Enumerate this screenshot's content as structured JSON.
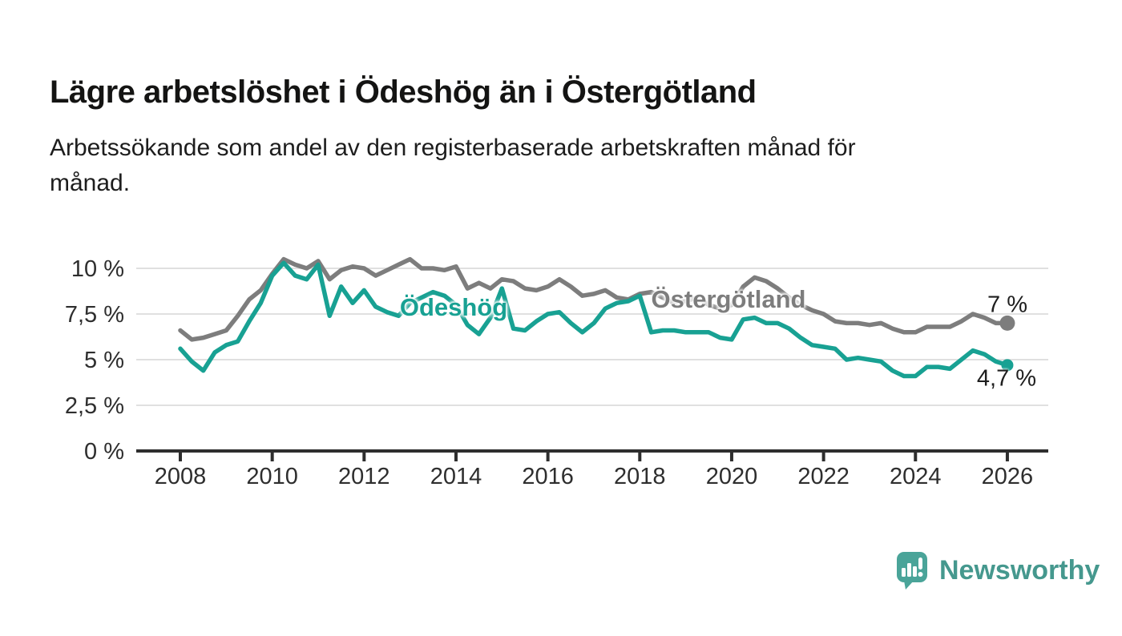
{
  "header": {
    "title": "Lägre arbetslöshet i Ödeshög än i Östergötland",
    "subtitle_lines": [
      "Arbetssökande som andel av den registerbaserade arbetskraften månad för",
      "månad."
    ]
  },
  "colors": {
    "odeshog": "#18a193",
    "ostergotland": "#7d7d7d",
    "axis": "#2e2e2e",
    "gridline": "#e0e0e0",
    "tick_text": "#2e2e2e",
    "text_dark": "#1e1e1e",
    "brand_bubble": "#4aa499",
    "brand_text": "#45988e"
  },
  "chart_data": {
    "type": "line",
    "title": "",
    "xlabel": "",
    "ylabel": "",
    "unit": "%",
    "grid": "horizontal",
    "legend_position": "inline-labels",
    "x_start": 2008,
    "x_step": 0.25,
    "x_end": 2026,
    "x_tick_years": [
      2008,
      2010,
      2012,
      2014,
      2016,
      2018,
      2020,
      2022,
      2024,
      2026
    ],
    "y_ticks": [
      {
        "value": 0,
        "label": "0 %"
      },
      {
        "value": 2.5,
        "label": "2,5 %"
      },
      {
        "value": 5,
        "label": "5 %"
      },
      {
        "value": 7.5,
        "label": "7,5 %"
      },
      {
        "value": 10,
        "label": "10 %"
      }
    ],
    "ylim": [
      0,
      11.5
    ],
    "series": [
      {
        "name": "Östergötland",
        "color": "#7d7d7d",
        "end_value_label": "7 %",
        "end_value": 7.0,
        "values": [
          6.6,
          6.1,
          6.2,
          6.4,
          6.6,
          7.4,
          8.3,
          8.8,
          9.7,
          10.5,
          10.2,
          10.0,
          10.4,
          9.4,
          9.9,
          10.1,
          10.0,
          9.6,
          9.9,
          10.2,
          10.5,
          10.0,
          10.0,
          9.9,
          10.1,
          8.9,
          9.2,
          8.9,
          9.4,
          9.3,
          8.9,
          8.8,
          9.0,
          9.4,
          9.0,
          8.5,
          8.6,
          8.8,
          8.4,
          8.3,
          8.6,
          8.7,
          8.4,
          8.1,
          8.2,
          8.4,
          8.0,
          7.8,
          8.0,
          9.0,
          9.5,
          9.3,
          8.9,
          8.4,
          8.0,
          7.7,
          7.5,
          7.1,
          7.0,
          7.0,
          6.9,
          7.0,
          6.7,
          6.5,
          6.5,
          6.8,
          6.8,
          6.8,
          7.1,
          7.5,
          7.3,
          7.0,
          7.0
        ]
      },
      {
        "name": "Ödeshög",
        "color": "#18a193",
        "end_value_label": "4,7 %",
        "end_value": 4.7,
        "values": [
          5.6,
          4.9,
          4.4,
          5.4,
          5.8,
          6.0,
          7.1,
          8.1,
          9.6,
          10.3,
          9.6,
          9.4,
          10.2,
          7.4,
          9.0,
          8.1,
          8.8,
          7.9,
          7.6,
          7.4,
          8.1,
          8.4,
          8.7,
          8.5,
          8.0,
          6.9,
          6.4,
          7.3,
          8.9,
          6.7,
          6.6,
          7.1,
          7.5,
          7.6,
          7.0,
          6.5,
          7.0,
          7.8,
          8.1,
          8.2,
          8.5,
          6.5,
          6.6,
          6.6,
          6.5,
          6.5,
          6.5,
          6.2,
          6.1,
          7.2,
          7.3,
          7.0,
          7.0,
          6.7,
          6.2,
          5.8,
          5.7,
          5.6,
          5.0,
          5.1,
          5.0,
          4.9,
          4.4,
          4.1,
          4.1,
          4.6,
          4.6,
          4.5,
          5.0,
          5.5,
          5.3,
          4.9,
          4.7
        ]
      }
    ]
  },
  "footer": {
    "brand_name": "Newsworthy"
  }
}
